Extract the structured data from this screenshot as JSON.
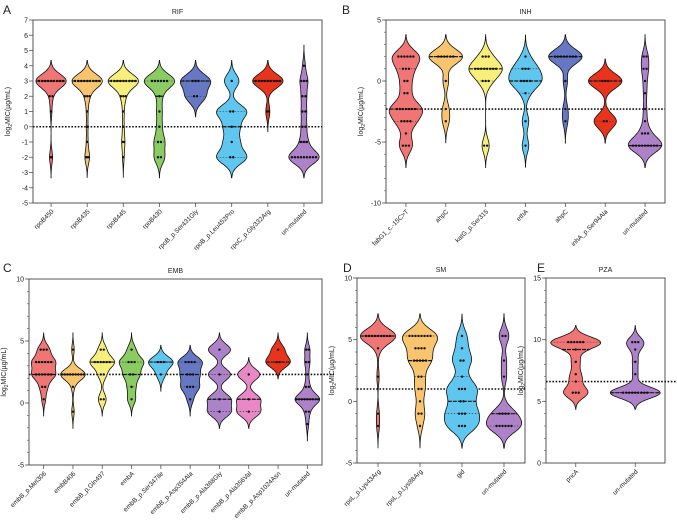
{
  "chart_data": [
    {
      "panel": "A",
      "type": "violin",
      "title": "RIF",
      "ylabel": "log2MIC(µg/mL)",
      "ylim": [
        -5,
        7
      ],
      "yticks": [
        -5,
        -4,
        -3,
        -2,
        -1,
        0,
        1,
        2,
        3,
        4,
        5,
        6,
        7
      ],
      "threshold": 0,
      "bandwidth": 0.45,
      "groups": [
        {
          "label": "rpoB450",
          "color": "#f07575",
          "values": [
            3,
            3,
            3,
            3,
            3,
            3,
            3,
            3,
            3,
            3,
            3,
            3,
            3,
            3,
            3,
            3,
            3,
            3,
            3,
            3,
            2,
            2,
            1,
            -2,
            -2
          ]
        },
        {
          "label": "rpoB435",
          "color": "#f9c46e",
          "values": [
            3,
            3,
            3,
            3,
            3,
            3,
            3,
            3,
            3,
            3,
            3,
            3,
            3,
            3,
            3,
            3,
            3,
            3,
            3,
            3,
            2,
            2,
            2,
            1,
            0,
            -1,
            -2,
            -2,
            -2
          ]
        },
        {
          "label": "rpoB445",
          "color": "#f7ef7a",
          "values": [
            3,
            3,
            3,
            3,
            3,
            3,
            3,
            3,
            3,
            3,
            3,
            3,
            3,
            3,
            3,
            3,
            3,
            3,
            3,
            3,
            2,
            2,
            2,
            1,
            0,
            -1,
            -1,
            -2
          ]
        },
        {
          "label": "rpoB430",
          "color": "#8acb62",
          "values": [
            3,
            3,
            3,
            3,
            3,
            3,
            2,
            1,
            0,
            -1,
            -1,
            -2,
            -2
          ]
        },
        {
          "label": "rpoB_p.Ser431Gly",
          "color": "#6677c4",
          "values": [
            3,
            3,
            3,
            2,
            2
          ]
        },
        {
          "label": "rpoB_p.Leu452Pro",
          "color": "#5fc6f0",
          "values": [
            3,
            1,
            1,
            0,
            -1,
            -2,
            -2
          ]
        },
        {
          "label": "rpoC_p.Gly332Arg",
          "color": "#e8341c",
          "values": [
            3,
            3,
            3,
            3,
            3,
            3,
            3,
            3,
            3,
            3,
            3,
            3,
            3,
            3,
            3,
            1,
            1
          ]
        },
        {
          "label": "un-mutated",
          "color": "#ad82c8",
          "values": [
            4,
            3,
            3,
            3,
            2,
            2,
            1,
            1,
            0,
            0,
            -1,
            -1,
            -1,
            -2,
            -2,
            -2,
            -2,
            -2,
            -2,
            -2,
            -2,
            -2,
            -2,
            -2,
            -2
          ]
        }
      ]
    },
    {
      "panel": "B",
      "type": "violin",
      "title": "INH",
      "ylabel": "log2MIC(µg/mL)",
      "ylim": [
        -10,
        5
      ],
      "yticks": [
        -10,
        -5,
        0,
        5
      ],
      "threshold": -2.3,
      "bandwidth": 0.6,
      "groups": [
        {
          "label": "fabG1_c.-15C>T",
          "color": "#f07575",
          "values": [
            2,
            2,
            2,
            2,
            2,
            2,
            1,
            1,
            1,
            0,
            0,
            -1,
            -1,
            -2.3,
            -2.3,
            -2.3,
            -2.3,
            -2.3,
            -2.3,
            -2.3,
            -3.3,
            -3.3,
            -3.3,
            -3.3,
            -4.3,
            -5.3,
            -5.3,
            -5.3
          ]
        },
        {
          "label": "ahpC",
          "color": "#f9c46e",
          "values": [
            2,
            2,
            2,
            2,
            2,
            2,
            0,
            -2.3,
            -3.3
          ]
        },
        {
          "label": "katG_p.Ser315",
          "color": "#f7ef7a",
          "values": [
            2,
            2,
            2,
            1,
            1,
            1,
            1,
            1,
            1,
            1,
            1,
            0,
            0,
            0,
            -5.3,
            -5.3
          ]
        },
        {
          "label": "ethA",
          "color": "#5fc6f0",
          "values": [
            2,
            1,
            1,
            1,
            0,
            0,
            0,
            0,
            -1,
            -3.3,
            -5.3
          ]
        },
        {
          "label": "ahpC",
          "color": "#6677c4",
          "values": [
            2,
            2,
            2,
            2,
            2,
            2,
            2,
            2,
            0,
            -2.3,
            -3.3
          ]
        },
        {
          "label": "inhA_p.Ser94Ala",
          "color": "#e8341c",
          "values": [
            0,
            0,
            0,
            -3.3,
            -3.3
          ]
        },
        {
          "label": "un-mutated",
          "color": "#ad82c8",
          "values": [
            2,
            2,
            1,
            1,
            0,
            -1,
            -2.3,
            -3.3,
            -4.3,
            -4.3,
            -4.3,
            -5.3,
            -5.3,
            -5.3,
            -5.3,
            -5.3,
            -5.3,
            -5.3,
            -5.3,
            -5.3,
            -5.3,
            -5.3,
            -5.3
          ]
        }
      ]
    },
    {
      "panel": "C",
      "type": "violin",
      "title": "EMB",
      "ylabel": "log2MIC(µg/mL)",
      "ylim": [
        -5,
        10
      ],
      "yticks": [
        -5,
        0,
        5,
        10
      ],
      "threshold": 2.3,
      "bandwidth": 0.45,
      "groups": [
        {
          "label": "embB_p.Met306",
          "color": "#f07575",
          "values": [
            4.3,
            4.3,
            4.3,
            3.3,
            3.3,
            3.3,
            3.3,
            3.3,
            3.3,
            2.3,
            2.3,
            2.3,
            2.3,
            2.3,
            2.3,
            1.3,
            1.3,
            0.3
          ]
        },
        {
          "label": "embB406",
          "color": "#f9c46e",
          "values": [
            4.3,
            2.3,
            2.3,
            2.3,
            2.3,
            2.3,
            2.3,
            2.3,
            2.3,
            2.3,
            2.3,
            1.3,
            -0.7
          ]
        },
        {
          "label": "embB_p.Gln497",
          "color": "#f7ef7a",
          "values": [
            4.3,
            4.3,
            3.3,
            3.3,
            3.3,
            3.3,
            3.3,
            3.3,
            2.3,
            2.3,
            0.3,
            0.3
          ]
        },
        {
          "label": "embA",
          "color": "#8acb62",
          "values": [
            4.3,
            3.3,
            3.3,
            3.3,
            2.3,
            2.3,
            1.3,
            0.3
          ]
        },
        {
          "label": "embB_p.Ser347Ile",
          "color": "#5fc6f0",
          "values": [
            3.3,
            3.3,
            3.3,
            2.3
          ]
        },
        {
          "label": "embB_p.Asp354Ala",
          "color": "#6677c4",
          "values": [
            3.3,
            3.3,
            3.3,
            3.3,
            2.3,
            2.3,
            2.3,
            1.3,
            1.3,
            1.3,
            0.3
          ]
        },
        {
          "label": "embB_p.Ala388Gly",
          "color": "#ad82c8",
          "values": [
            4.3,
            2.3,
            0.3,
            -0.7
          ]
        },
        {
          "label": "embB_p.Ala356Val",
          "color": "#e888c4",
          "values": [
            2.3,
            0.3,
            -0.7
          ]
        },
        {
          "label": "embB_p.Asp1024Asn",
          "color": "#e8341c",
          "values": [
            4.3,
            3.3,
            3.3
          ]
        },
        {
          "label": "un-mutated",
          "color": "#ad82c8",
          "values": [
            4.3,
            4.3,
            3.3,
            3.3,
            2.3,
            1.3,
            1.3,
            0.3,
            0.3,
            0.3,
            0.3,
            0.3,
            0.3,
            0.3,
            0.3,
            0.3,
            0.3,
            -0.7,
            -0.7,
            -1.7
          ]
        }
      ]
    },
    {
      "panel": "D",
      "type": "violin",
      "title": "SM",
      "ylabel": "log2MIC(µg/mL)",
      "ylim": [
        -5,
        10
      ],
      "yticks": [
        -5,
        0,
        5,
        10
      ],
      "threshold": 1,
      "bandwidth": 0.6,
      "groups": [
        {
          "label": "rpsL_p.Lys43Arg",
          "color": "#f07575",
          "values": [
            5.3,
            5.3,
            5.3,
            5.3,
            5.3,
            5.3,
            5.3,
            5.3,
            5.3,
            5.3,
            5.3,
            5.3,
            5.3,
            5.3,
            5.3,
            4.3,
            2,
            -1,
            -2
          ]
        },
        {
          "label": "rpsL_p.Lys88Arg",
          "color": "#f9c46e",
          "values": [
            5.3,
            5.3,
            5.3,
            5.3,
            5.3,
            5.3,
            5.3,
            5.3,
            4.3,
            4.3,
            4.3,
            4.3,
            3.3,
            3.3,
            3.3,
            3.3,
            3.3,
            2,
            2,
            1,
            1,
            0,
            -1,
            -1,
            -2
          ]
        },
        {
          "label": "gid",
          "color": "#5fc6f0",
          "values": [
            5.3,
            4.3,
            3.3,
            3.3,
            2,
            1,
            1,
            1,
            0,
            0,
            -1,
            -1,
            -1,
            -2,
            -2,
            -2
          ]
        },
        {
          "label": "un-mutated",
          "color": "#ad82c8",
          "values": [
            5.3,
            5.3,
            3.3,
            2,
            -1,
            -1,
            -1,
            -1,
            -2,
            -2,
            -2,
            -2,
            -2,
            -2
          ]
        }
      ]
    },
    {
      "panel": "E",
      "type": "violin",
      "title": "PZA",
      "ylabel": "log2MIC(µg/mL)",
      "ylim": [
        0,
        15
      ],
      "yticks": [
        0,
        5,
        10,
        15
      ],
      "threshold": 6.6,
      "bandwidth": 0.45,
      "groups": [
        {
          "label": "pncA",
          "color": "#f07575",
          "values": [
            9.8,
            9.8,
            9.8,
            9.8,
            9.8,
            9.8,
            9.2,
            8.2,
            7.2,
            6.6,
            5.7,
            5.7,
            5.7
          ]
        },
        {
          "label": "un-mutated",
          "color": "#ad82c8",
          "values": [
            9.8,
            9.8,
            9.8,
            9.2,
            8.2,
            7.2,
            5.7,
            5.7,
            5.7,
            5.7,
            5.7,
            5.7,
            5.7,
            5.7,
            5.7,
            5.7
          ]
        }
      ]
    }
  ]
}
